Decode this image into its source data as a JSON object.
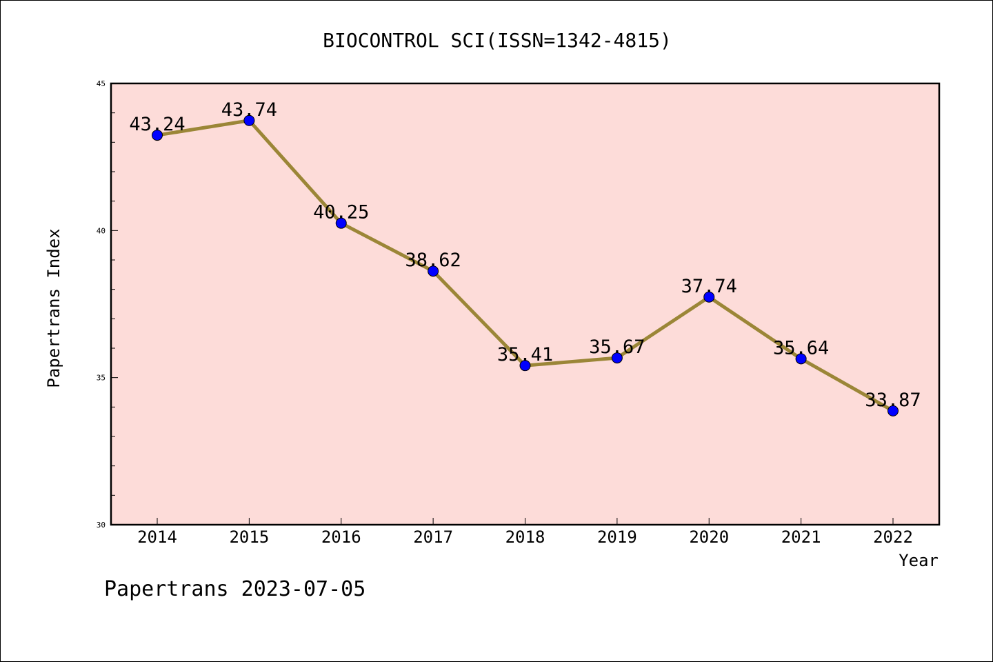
{
  "chart_data": {
    "type": "line",
    "title": "BIOCONTROL SCI(ISSN=1342-4815)",
    "xlabel": "Year",
    "ylabel": "Papertrans Index",
    "categories": [
      "2014",
      "2015",
      "2016",
      "2017",
      "2018",
      "2019",
      "2020",
      "2021",
      "2022"
    ],
    "series": [
      {
        "values": [
          43.24,
          43.74,
          40.25,
          38.62,
          35.41,
          35.67,
          37.74,
          35.64,
          33.87
        ]
      }
    ],
    "data_labels": [
      "43.24",
      "43.74",
      "40.25",
      "38.62",
      "35.41",
      "35.67",
      "37.74",
      "35.64",
      "33.87"
    ],
    "ylim": [
      30,
      45
    ],
    "y_major_ticks": [
      30,
      35,
      40,
      45
    ],
    "y_tick_labels": [
      "30",
      "35",
      "40",
      "45"
    ],
    "y_minor_step": 1,
    "grid": false,
    "colors": {
      "plot_bg": "#fddcd9",
      "line": "#9b8637",
      "marker": "#0000ff"
    }
  },
  "footer": {
    "text": "Papertrans 2023-07-05"
  }
}
